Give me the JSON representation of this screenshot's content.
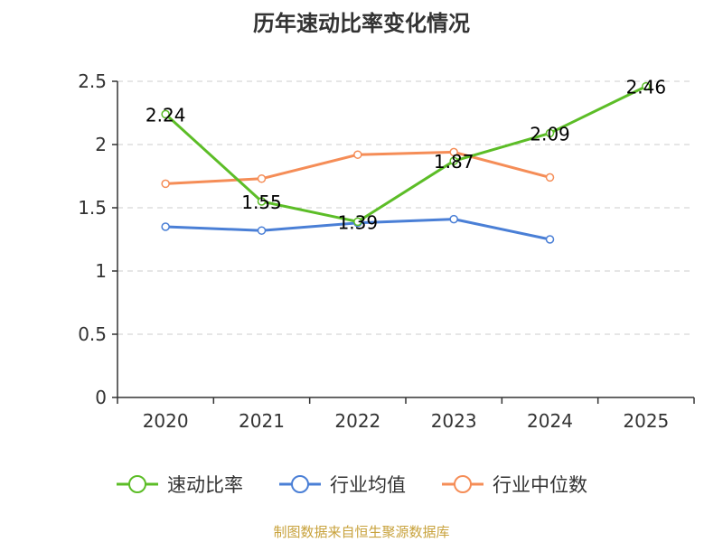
{
  "chart_data": {
    "type": "line",
    "title": "历年速动比率变化情况",
    "categories": [
      "2020",
      "2021",
      "2022",
      "2023",
      "2024",
      "2025"
    ],
    "ylim": [
      0,
      2.5
    ],
    "yticks": [
      0,
      0.5,
      1,
      1.5,
      2,
      2.5
    ],
    "ytick_labels": [
      "0",
      "0.5",
      "1",
      "1.5",
      "2",
      "2.5"
    ],
    "grid": true,
    "legend_position": "bottom",
    "series": [
      {
        "name": "速动比率",
        "color": "#5cbd27",
        "values": [
          2.24,
          1.55,
          1.39,
          1.87,
          2.09,
          2.46
        ],
        "labels": [
          "2.24",
          "1.55",
          "1.39",
          "1.87",
          "2.09",
          "2.46"
        ],
        "show_labels": true
      },
      {
        "name": "行业均值",
        "color": "#4a7fd6",
        "values": [
          1.35,
          1.32,
          1.38,
          1.41,
          1.25,
          null
        ],
        "show_labels": false
      },
      {
        "name": "行业中位数",
        "color": "#f58d57",
        "values": [
          1.69,
          1.73,
          1.92,
          1.94,
          1.74,
          null
        ],
        "show_labels": false
      }
    ]
  },
  "source": "制图数据来自恒生聚源数据库"
}
